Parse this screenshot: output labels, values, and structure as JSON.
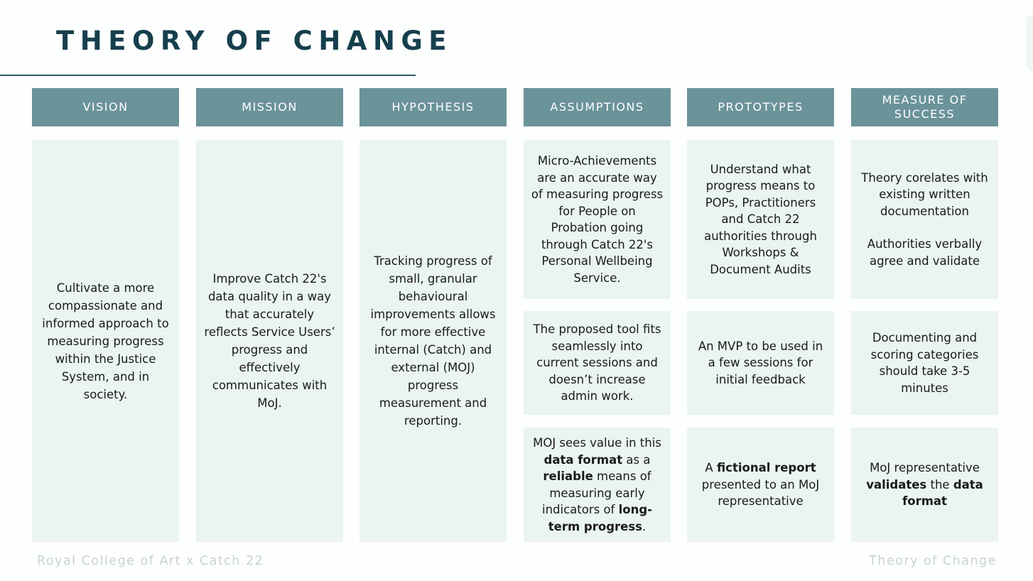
{
  "title": "THEORY OF CHANGE",
  "columns": [
    {
      "header": "VISION",
      "cards": [
        {
          "segments": [
            {
              "t": "Cultivate a more compassionate and informed approach to measuring progress within the Justice System, and in society.",
              "b": false
            }
          ]
        }
      ]
    },
    {
      "header": "MISSION",
      "cards": [
        {
          "segments": [
            {
              "t": "Improve Catch 22's data quality in a way that accurately reflects Service Users’ progress and effectively communicates with MoJ.",
              "b": false
            }
          ]
        }
      ]
    },
    {
      "header": "HYPOTHESIS",
      "cards": [
        {
          "segments": [
            {
              "t": "Tracking progress of small, granular behavioural improvements allows for more effective internal (Catch) and external (MOJ) progress measurement and reporting.",
              "b": false
            }
          ]
        }
      ]
    },
    {
      "header": "ASSUMPTIONS",
      "cards": [
        {
          "segments": [
            {
              "t": "Micro-Achievements are an accurate way of measuring progress for People on Probation going through Catch 22's Personal Wellbeing Service.",
              "b": false
            }
          ]
        },
        {
          "segments": [
            {
              "t": "The proposed tool fits seamlessly into current sessions and doesn’t increase admin work.",
              "b": false
            }
          ]
        },
        {
          "segments": [
            {
              "t": "MOJ sees value in this ",
              "b": false
            },
            {
              "t": "data format",
              "b": true
            },
            {
              "t": " as a ",
              "b": false
            },
            {
              "t": "reliable",
              "b": true
            },
            {
              "t": " means of measuring early indicators of ",
              "b": false
            },
            {
              "t": "long-term progress",
              "b": true
            },
            {
              "t": ".",
              "b": false
            }
          ]
        }
      ]
    },
    {
      "header": "PROTOTYPES",
      "cards": [
        {
          "segments": [
            {
              "t": "Understand what progress means to POPs, Practitioners and Catch 22 authorities through Workshops & Document Audits",
              "b": false
            }
          ]
        },
        {
          "segments": [
            {
              "t": "An MVP to be used in a few sessions for initial feedback",
              "b": false
            }
          ]
        },
        {
          "segments": [
            {
              "t": "A ",
              "b": false
            },
            {
              "t": "fictional report",
              "b": true
            },
            {
              "t": " presented to an MoJ representative",
              "b": false
            }
          ]
        }
      ]
    },
    {
      "header": "MEASURE OF SUCCESS",
      "cards": [
        {
          "segments": [
            {
              "t": "Theory corelates with existing written documentation",
              "b": false
            },
            {
              "t": "Authorities verbally agree and validate",
              "b": false,
              "newPara": true
            }
          ]
        },
        {
          "segments": [
            {
              "t": "Documenting and scoring categories should take 3-5 minutes",
              "b": false
            }
          ]
        },
        {
          "segments": [
            {
              "t": "MoJ representative ",
              "b": false
            },
            {
              "t": "validates",
              "b": true
            },
            {
              "t": " the ",
              "b": false
            },
            {
              "t": "data format",
              "b": true
            }
          ]
        }
      ]
    }
  ],
  "footer": {
    "left": "Royal College of Art x Catch 22",
    "right": "Theory of Change"
  }
}
